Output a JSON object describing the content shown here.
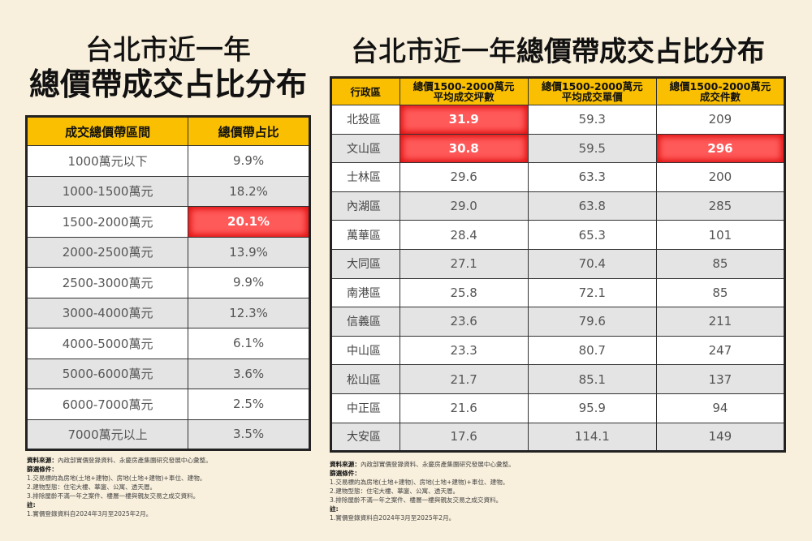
{
  "left": {
    "title_line1": "台北市近一年",
    "title_line2": "總價帶成交占比分布",
    "table": {
      "headers": [
        "成交總價帶區間",
        "總價帶占比"
      ],
      "rows": [
        {
          "range": "1000萬元以下",
          "share": "9.9%",
          "highlight": false
        },
        {
          "range": "1000-1500萬元",
          "share": "18.2%",
          "highlight": false
        },
        {
          "range": "1500-2000萬元",
          "share": "20.1%",
          "highlight": true
        },
        {
          "range": "2000-2500萬元",
          "share": "13.9%",
          "highlight": false
        },
        {
          "range": "2500-3000萬元",
          "share": "9.9%",
          "highlight": false
        },
        {
          "range": "3000-4000萬元",
          "share": "12.3%",
          "highlight": false
        },
        {
          "range": "4000-5000萬元",
          "share": "6.1%",
          "highlight": false
        },
        {
          "range": "5000-6000萬元",
          "share": "3.6%",
          "highlight": false
        },
        {
          "range": "6000-7000萬元",
          "share": "2.5%",
          "highlight": false
        },
        {
          "range": "7000萬元以上",
          "share": "3.5%",
          "highlight": false
        }
      ]
    },
    "notes": {
      "source_label": "資料來源：",
      "source_text": "內政部實價登錄資料、永慶房產集團研究發展中心彙整。",
      "filter_label": "篩選條件：",
      "filters": [
        "1.交易標的為房地(土地+建物)、房地(土地+建物)+車位、建物。",
        "2.建物型態：住宅大樓、華廈、公寓、透天厝。",
        "3.排除屋齡不滿一年之案件、樓層一樓與親友交易之成交資料。"
      ],
      "note_label": "註:",
      "note_items": [
        "1.實價登錄資料自2024年3月至2025年2月。"
      ]
    }
  },
  "right": {
    "title_part1": "台北市近一年",
    "title_part2": "總價帶成交占比分布",
    "table": {
      "headers": [
        {
          "line1": "行政區",
          "line2": ""
        },
        {
          "line1": "總價1500-2000萬元",
          "line2": "平均成交坪數"
        },
        {
          "line1": "總價1500-2000萬元",
          "line2": "平均成交單價"
        },
        {
          "line1": "總價1500-2000萬元",
          "line2": "成交件數"
        }
      ],
      "rows": [
        {
          "district": "北投區",
          "avg_area": "31.9",
          "avg_price": "59.3",
          "count": "209",
          "hl_area": true,
          "hl_count": false
        },
        {
          "district": "文山區",
          "avg_area": "30.8",
          "avg_price": "59.5",
          "count": "296",
          "hl_area": true,
          "hl_count": true
        },
        {
          "district": "士林區",
          "avg_area": "29.6",
          "avg_price": "63.3",
          "count": "200",
          "hl_area": false,
          "hl_count": false
        },
        {
          "district": "內湖區",
          "avg_area": "29.0",
          "avg_price": "63.8",
          "count": "285",
          "hl_area": false,
          "hl_count": false
        },
        {
          "district": "萬華區",
          "avg_area": "28.4",
          "avg_price": "65.3",
          "count": "101",
          "hl_area": false,
          "hl_count": false
        },
        {
          "district": "大同區",
          "avg_area": "27.1",
          "avg_price": "70.4",
          "count": "85",
          "hl_area": false,
          "hl_count": false
        },
        {
          "district": "南港區",
          "avg_area": "25.8",
          "avg_price": "72.1",
          "count": "85",
          "hl_area": false,
          "hl_count": false
        },
        {
          "district": "信義區",
          "avg_area": "23.6",
          "avg_price": "79.6",
          "count": "211",
          "hl_area": false,
          "hl_count": false
        },
        {
          "district": "中山區",
          "avg_area": "23.3",
          "avg_price": "80.7",
          "count": "247",
          "hl_area": false,
          "hl_count": false
        },
        {
          "district": "松山區",
          "avg_area": "21.7",
          "avg_price": "85.1",
          "count": "137",
          "hl_area": false,
          "hl_count": false
        },
        {
          "district": "中正區",
          "avg_area": "21.6",
          "avg_price": "95.9",
          "count": "94",
          "hl_area": false,
          "hl_count": false
        },
        {
          "district": "大安區",
          "avg_area": "17.6",
          "avg_price": "114.1",
          "count": "149",
          "hl_area": false,
          "hl_count": false
        }
      ]
    },
    "notes": {
      "source_label": "資料來源：",
      "source_text": "內政部實價登錄資料、永慶房產集團研究發展中心彙整。",
      "filter_label": "篩選條件：",
      "filters": [
        "1.交易標的為房地(土地+建物)、房地(土地+建物)+車位、建物。",
        "2.建物型態：住宅大樓、華廈、公寓、透天厝。",
        "3.排除屋齡不滿一年之案件、樓層一樓與親友交易之成交資料。"
      ],
      "note_label": "註:",
      "note_items": [
        "1.實價登錄資料自2024年3月至2025年2月。"
      ]
    }
  },
  "colors": {
    "background": "#f8efdc",
    "header": "#f9bf00",
    "highlight": "#ff5a5a",
    "row_gray": "#e4e4e4"
  }
}
